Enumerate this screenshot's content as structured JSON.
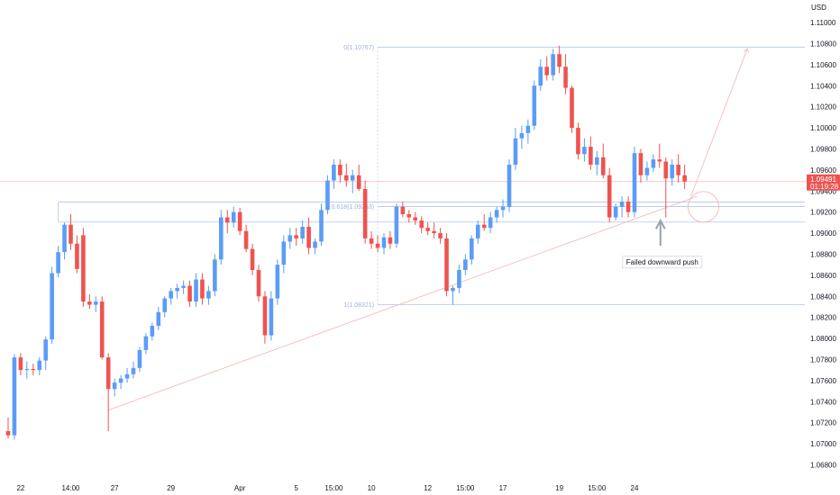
{
  "chart_data": {
    "type": "candlestick",
    "currency_label": "USD",
    "y_ticks": [
      "1.11000",
      "1.10800",
      "1.10600",
      "1.10400",
      "1.10200",
      "1.10000",
      "1.09800",
      "1.09600",
      "1.09400",
      "1.09200",
      "1.09000",
      "1.08800",
      "1.08600",
      "1.08400",
      "1.08200",
      "1.08000",
      "1.07800",
      "1.07600",
      "1.07400",
      "1.07200",
      "1.07000",
      "1.06800"
    ],
    "ylim": [
      1.0665,
      1.1118
    ],
    "x_ticks": [
      {
        "label": "22",
        "i": 2
      },
      {
        "label": "14:00",
        "i": 10
      },
      {
        "label": "27",
        "i": 17
      },
      {
        "label": "29",
        "i": 26
      },
      {
        "label": "Apr",
        "i": 37
      },
      {
        "label": "5",
        "i": 46
      },
      {
        "label": "15:00",
        "i": 52
      },
      {
        "label": "10",
        "i": 58
      },
      {
        "label": "12",
        "i": 67
      },
      {
        "label": "15:00",
        "i": 73
      },
      {
        "label": "17",
        "i": 79
      },
      {
        "label": "19",
        "i": 88
      },
      {
        "label": "15:00",
        "i": 94
      },
      {
        "label": "24",
        "i": 100
      }
    ],
    "last_price": "1.09491",
    "countdown": "01:19:28",
    "colors": {
      "up": "#5b9cf6",
      "down": "#ef5350",
      "fib": "#b2c4e8",
      "trend": "#f0b6b6",
      "price_line": "#f7b6b6"
    },
    "fib_levels": [
      {
        "label": "0(1.10767)",
        "value": 1.10767,
        "start_i": 59
      },
      {
        "label": "0.618(1.09253)",
        "value": 1.09253,
        "start_i": 59
      },
      {
        "label": "1(1.08321)",
        "value": 1.08321,
        "start_i": 59
      }
    ],
    "zone_lines": [
      1.09295,
      1.09105
    ],
    "annotation": "Failed downward push",
    "candles": [
      [
        1.0712,
        1.0725,
        1.0705,
        1.0708
      ],
      [
        1.0708,
        1.0785,
        1.0704,
        1.0782
      ],
      [
        1.0782,
        1.0786,
        1.0765,
        1.077
      ],
      [
        1.077,
        1.0778,
        1.0762,
        1.0771
      ],
      [
        1.0771,
        1.0776,
        1.0765,
        1.077
      ],
      [
        1.077,
        1.0782,
        1.0765,
        1.0779
      ],
      [
        1.0779,
        1.0802,
        1.077,
        1.0799
      ],
      [
        1.0799,
        1.0868,
        1.0795,
        1.0862
      ],
      [
        1.0862,
        1.0888,
        1.0858,
        1.0882
      ],
      [
        1.0882,
        1.091,
        1.0875,
        1.0908
      ],
      [
        1.0908,
        1.0918,
        1.0884,
        1.089
      ],
      [
        1.089,
        1.0898,
        1.0862,
        1.0866
      ],
      [
        1.0898,
        1.0905,
        1.083,
        1.0835
      ],
      [
        1.0835,
        1.0842,
        1.0828,
        1.0832
      ],
      [
        1.0832,
        1.084,
        1.0825,
        1.0835
      ],
      [
        1.0835,
        1.084,
        1.078,
        1.0782
      ],
      [
        1.0782,
        1.0786,
        1.0712,
        1.0752
      ],
      [
        1.0752,
        1.0762,
        1.0745,
        1.0758
      ],
      [
        1.0758,
        1.0765,
        1.0752,
        1.0762
      ],
      [
        1.0762,
        1.0772,
        1.0758,
        1.0766
      ],
      [
        1.0766,
        1.0778,
        1.0762,
        1.0772
      ],
      [
        1.0772,
        1.0792,
        1.0768,
        1.0789
      ],
      [
        1.0789,
        1.0805,
        1.0785,
        1.0802
      ],
      [
        1.0802,
        1.0815,
        1.0798,
        1.0812
      ],
      [
        1.0812,
        1.083,
        1.0808,
        1.0825
      ],
      [
        1.0825,
        1.084,
        1.082,
        1.0838
      ],
      [
        1.0838,
        1.0848,
        1.0832,
        1.0845
      ],
      [
        1.0845,
        1.0852,
        1.0838,
        1.0848
      ],
      [
        1.0848,
        1.0855,
        1.0842,
        1.085
      ],
      [
        1.085,
        1.0855,
        1.083,
        1.0835
      ],
      [
        1.0835,
        1.0862,
        1.083,
        1.0856
      ],
      [
        1.0856,
        1.0862,
        1.0832,
        1.0838
      ],
      [
        1.0838,
        1.085,
        1.0832,
        1.0845
      ],
      [
        1.0845,
        1.088,
        1.084,
        1.0875
      ],
      [
        1.0875,
        1.0922,
        1.087,
        1.0915
      ],
      [
        1.0915,
        1.0922,
        1.09,
        1.091
      ],
      [
        1.091,
        1.0925,
        1.0905,
        1.092
      ],
      [
        1.092,
        1.0924,
        1.0898,
        1.0902
      ],
      [
        1.0902,
        1.0908,
        1.0882,
        1.0885
      ],
      [
        1.0885,
        1.089,
        1.086,
        1.0865
      ],
      [
        1.0865,
        1.087,
        1.0835,
        1.084
      ],
      [
        1.084,
        1.0845,
        1.0795,
        1.0803
      ],
      [
        1.0803,
        1.0845,
        1.0798,
        1.0838
      ],
      [
        1.0838,
        1.0875,
        1.0832,
        1.087
      ],
      [
        1.087,
        1.0898,
        1.0862,
        1.0892
      ],
      [
        1.0892,
        1.0905,
        1.0885,
        1.0898
      ],
      [
        1.0898,
        1.0905,
        1.0888,
        1.0895
      ],
      [
        1.0895,
        1.0912,
        1.089,
        1.0906
      ],
      [
        1.0906,
        1.0915,
        1.088,
        1.0886
      ],
      [
        1.0886,
        1.0895,
        1.088,
        1.0892
      ],
      [
        1.0892,
        1.0928,
        1.0888,
        1.0922
      ],
      [
        1.0922,
        1.0955,
        1.0918,
        1.095
      ],
      [
        1.095,
        1.097,
        1.0942,
        1.0965
      ],
      [
        1.0965,
        1.097,
        1.0948,
        1.0955
      ],
      [
        1.0955,
        1.0966,
        1.0944,
        1.095
      ],
      [
        1.095,
        1.096,
        1.0938,
        1.0955
      ],
      [
        1.0955,
        1.0965,
        1.094,
        1.0942
      ],
      [
        1.0942,
        1.095,
        1.089,
        1.0895
      ],
      [
        1.0895,
        1.0902,
        1.0885,
        1.089
      ],
      [
        1.089,
        1.0898,
        1.0882,
        1.0886
      ],
      [
        1.0886,
        1.09,
        1.088,
        1.0896
      ],
      [
        1.0896,
        1.0902,
        1.0885,
        1.089
      ],
      [
        1.089,
        1.0928,
        1.0886,
        1.0925
      ],
      [
        1.0925,
        1.093,
        1.0915,
        1.0918
      ],
      [
        1.0918,
        1.0922,
        1.091,
        1.0915
      ],
      [
        1.0915,
        1.092,
        1.0908,
        1.0912
      ],
      [
        1.0912,
        1.0916,
        1.09,
        1.0905
      ],
      [
        1.0905,
        1.091,
        1.0898,
        1.0902
      ],
      [
        1.0902,
        1.091,
        1.0895,
        1.09
      ],
      [
        1.09,
        1.0905,
        1.089,
        1.0895
      ],
      [
        1.0895,
        1.09,
        1.084,
        1.0845
      ],
      [
        1.0845,
        1.085,
        1.0832,
        1.0848
      ],
      [
        1.0848,
        1.087,
        1.0843,
        1.0865
      ],
      [
        1.0865,
        1.088,
        1.086,
        1.0875
      ],
      [
        1.0875,
        1.0898,
        1.087,
        1.0895
      ],
      [
        1.0895,
        1.0912,
        1.089,
        1.0908
      ],
      [
        1.0908,
        1.0918,
        1.0902,
        1.0905
      ],
      [
        1.0905,
        1.092,
        1.09,
        1.0915
      ],
      [
        1.0915,
        1.0925,
        1.091,
        1.0922
      ],
      [
        1.0922,
        1.0932,
        1.0915,
        1.0925
      ],
      [
        1.0925,
        1.097,
        1.092,
        1.0965
      ],
      [
        1.0965,
        1.1,
        1.096,
        1.099
      ],
      [
        1.099,
        1.1002,
        1.098,
        1.0995
      ],
      [
        1.0995,
        1.1008,
        1.0985,
        1.1002
      ],
      [
        1.1002,
        1.1045,
        1.0998,
        1.104
      ],
      [
        1.104,
        1.1065,
        1.1035,
        1.1058
      ],
      [
        1.1058,
        1.1068,
        1.1045,
        1.105
      ],
      [
        1.105,
        1.1075,
        1.1045,
        1.107
      ],
      [
        1.107,
        1.1078,
        1.1052,
        1.1058
      ],
      [
        1.1058,
        1.107,
        1.1032,
        1.1038
      ],
      [
        1.1038,
        1.104,
        1.0995,
        1.1
      ],
      [
        1.1,
        1.1005,
        1.097,
        1.0975
      ],
      [
        1.0975,
        1.099,
        1.0968,
        1.0982
      ],
      [
        1.0982,
        1.0992,
        1.096,
        1.0965
      ],
      [
        1.0965,
        1.0978,
        1.0955,
        1.0972
      ],
      [
        1.0972,
        1.0985,
        1.0952,
        1.0955
      ],
      [
        1.0955,
        1.0962,
        1.091,
        1.0915
      ],
      [
        1.0915,
        1.0928,
        1.0912,
        1.0925
      ],
      [
        1.0925,
        1.0935,
        1.0915,
        1.093
      ],
      [
        1.093,
        1.0935,
        1.0915,
        1.092
      ],
      [
        1.092,
        1.0982,
        1.0915,
        1.0976
      ],
      [
        1.0976,
        1.098,
        1.0948,
        1.0955
      ],
      [
        1.0955,
        1.0968,
        1.095,
        1.0962
      ],
      [
        1.0962,
        1.0975,
        1.0958,
        1.097
      ],
      [
        1.097,
        1.0985,
        1.0962,
        1.0968
      ],
      [
        1.0968,
        1.0972,
        1.0915,
        1.0952
      ],
      [
        1.0952,
        1.097,
        1.0945,
        1.0965
      ],
      [
        1.0965,
        1.0975,
        1.0948,
        1.0955
      ],
      [
        1.0955,
        1.0965,
        1.0942,
        1.0949
      ]
    ]
  }
}
